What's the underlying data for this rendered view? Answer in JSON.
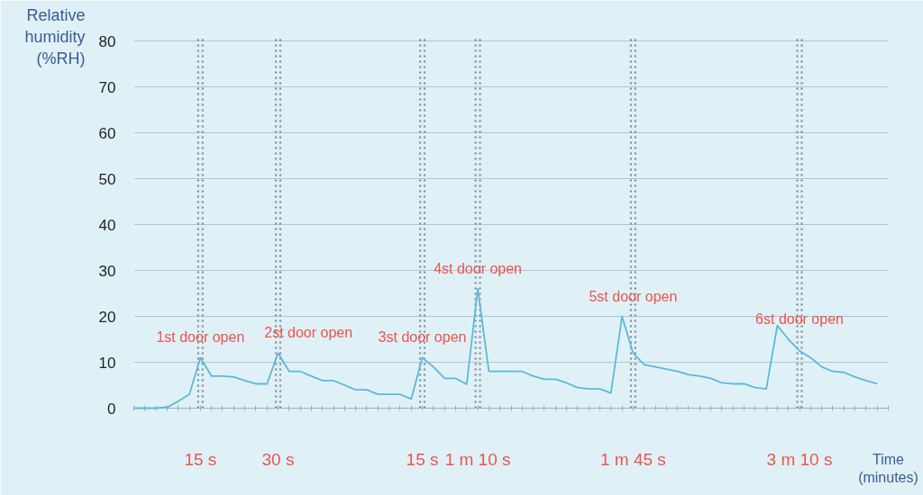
{
  "chart_data": {
    "type": "line",
    "ylabel": "Relative humidity (%RH)",
    "xlabel": "Time (minutes)",
    "categories": [
      null,
      null,
      null,
      null,
      null,
      null,
      "15 s",
      null,
      null,
      null,
      null,
      null,
      null,
      "30 s",
      null,
      null,
      null,
      null,
      null,
      null,
      null,
      null,
      null,
      null,
      null,
      null,
      "15 s",
      null,
      null,
      null,
      null,
      "1 m 10 s",
      null,
      null,
      null,
      null,
      null,
      null,
      null,
      null,
      null,
      null,
      null,
      null,
      null,
      "1 m 45 s",
      null,
      null,
      null,
      null,
      null,
      null,
      null,
      null,
      null,
      null,
      null,
      null,
      null,
      null,
      "3 m 10 s",
      null,
      null,
      null,
      null,
      null,
      null,
      null,
      null
    ],
    "series": [
      {
        "color": "#5cb8de",
        "values": [
          0,
          0,
          0,
          0.2,
          1.5,
          3,
          11,
          7,
          7,
          6.8,
          6,
          5.3,
          5.3,
          12,
          8,
          8,
          7,
          6,
          6,
          5,
          4,
          4,
          3,
          3,
          3,
          2,
          11,
          9,
          6.5,
          6.5,
          5.2,
          26,
          8,
          8,
          8,
          8,
          7,
          6.3,
          6.3,
          5.5,
          4.5,
          4.2,
          4.2,
          3.3,
          20,
          12,
          9.5,
          9,
          8.5,
          8,
          7.3,
          7,
          6.5,
          5.5,
          5.3,
          5.3,
          4.5,
          4.2,
          18,
          15,
          12.5,
          11,
          9,
          8,
          7.8,
          6.8,
          6,
          5.3,
          null
        ]
      }
    ],
    "ylim": [
      0,
      81
    ],
    "yticks": [
      0,
      10,
      20,
      30,
      40,
      50,
      60,
      70,
      80
    ],
    "grid": true,
    "marker": "none",
    "line_style": "solid",
    "annotations": [
      "1st door open",
      "2st door open",
      "3st door open",
      "4st door open",
      "5st door open",
      "6st door open"
    ]
  }
}
